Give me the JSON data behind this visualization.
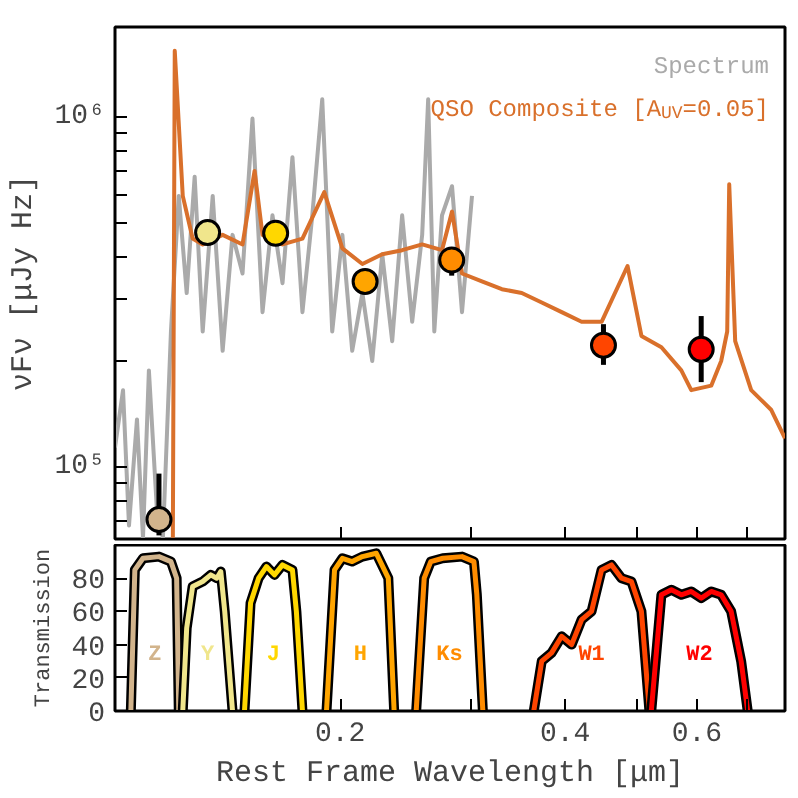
{
  "chart_data": [
    {
      "type": "line",
      "log": "xy",
      "ylabel": "νFν [μJy Hz]",
      "tick_labels": "y",
      "legend": "top right",
      "xlim": [
        0.1,
        0.787
      ],
      "xticks": [
        0.2,
        {
          "value": 0.3,
          "label": null
        },
        0.4,
        {
          "value": 0.5,
          "label": null
        },
        0.6,
        {
          "value": 0.7,
          "label": null
        }
      ],
      "ylim": [
        62500,
        1800000
      ],
      "yticks": [
        {
          "value": 70000,
          "label": null
        },
        {
          "value": 80000,
          "label": null
        },
        {
          "value": 90000,
          "label": null
        },
        {
          "value": 100000,
          "label": "10⁵"
        },
        {
          "value": 200000,
          "label": null
        },
        {
          "value": 300000,
          "label": null
        },
        {
          "value": 400000,
          "label": null
        },
        {
          "value": 500000,
          "label": null
        },
        {
          "value": 600000,
          "label": null
        },
        {
          "value": 700000,
          "label": null
        },
        {
          "value": 800000,
          "label": null
        },
        {
          "value": 900000,
          "label": null
        },
        {
          "value": 1000000,
          "label": "10⁶"
        }
      ],
      "series": [
        {
          "name": "Spectrum",
          "type": "line",
          "color": "#aaaaaa",
          "x": [
            0.1,
            0.1025,
            0.1044,
            0.107,
            0.109,
            0.111,
            0.1137,
            0.1159,
            0.1188,
            0.1217,
            0.1247,
            0.1278,
            0.131,
            0.1351,
            0.1393,
            0.1436,
            0.1481,
            0.1527,
            0.1575,
            0.1624,
            0.1675,
            0.1727,
            0.1781,
            0.1836,
            0.1893,
            0.1952,
            0.2014,
            0.2076,
            0.2142,
            0.2208,
            0.2277,
            0.2348,
            0.2421,
            0.2497,
            0.2575,
            0.2623,
            0.2673,
            0.2737,
            0.2823,
            0.2911,
            0.3002
          ],
          "values": [
            114000,
            166000,
            68300,
            137000,
            63000,
            189000,
            77500,
            63000,
            244000,
            594000,
            314000,
            674000,
            244000,
            594000,
            215000,
            460000,
            357000,
            987000,
            277000,
            523000,
            335000,
            766000,
            277000,
            523000,
            1120000,
            244000,
            460000,
            215000,
            314000,
            201000,
            405000,
            229000,
            523000,
            260000,
            460000,
            1120000,
            244000,
            523000,
            633000,
            277000,
            594000
          ]
        },
        {
          "name": "QSO Composite [A$_{UV}$=0.05]",
          "type": "line",
          "color": "#d9702b",
          "x": [
            0.1195,
            0.1202,
            0.1232,
            0.127,
            0.131,
            0.1393,
            0.1481,
            0.1537,
            0.1575,
            0.1675,
            0.1781,
            0.1905,
            0.2014,
            0.2142,
            0.2277,
            0.2421,
            0.2575,
            0.2737,
            0.2823,
            0.2911,
            0.3095,
            0.3291,
            0.3499,
            0.3721,
            0.3957,
            0.4207,
            0.4474,
            0.4846,
            0.5058,
            0.5379,
            0.5719,
            0.5897,
            0.6271,
            0.6466,
            0.6587,
            0.6628,
            0.6751,
            0.7092,
            0.754,
            0.787
          ],
          "values": [
            63000,
            1540000,
            594000,
            449000,
            432000,
            460000,
            432000,
            700000,
            460000,
            432000,
            449000,
            609000,
            421000,
            380000,
            405000,
            416000,
            432000,
            416000,
            536000,
            357000,
            339000,
            322000,
            314000,
            295000,
            277000,
            260000,
            260000,
            375000,
            237000,
            220000,
            189000,
            166000,
            171000,
            201000,
            244000,
            641000,
            229000,
            166000,
            146000,
            121000
          ]
        },
        {
          "type": "scatter",
          "marker": "circle",
          "x": [
            0.1145,
            0.133,
            0.164,
            0.216,
            0.282,
            0.45,
            0.608
          ],
          "values": [
            71000,
            467000,
            465000,
            339000,
            390000,
            223000,
            217000
          ],
          "colors": [
            "#d2b48c",
            "#f0e68c",
            "#ffd700",
            "#ffa500",
            "#ff8c00",
            "#ff4500",
            "#ff0000"
          ],
          "errors": [
            [
              64000,
              96000
            ],
            null,
            null,
            [
              314000,
              357000
            ],
            [
              352000,
              416000
            ],
            [
              196000,
              256000
            ],
            [
              175000,
              270000
            ]
          ]
        }
      ]
    },
    {
      "type": "line",
      "log": "x",
      "xlabel": "Rest Frame Wavelength [μm]",
      "ylabel": "Transmission",
      "xlim": [
        0.1,
        0.787
      ],
      "xticks": [
        0.2,
        {
          "value": 0.3,
          "label": null
        },
        0.4,
        {
          "value": 0.5,
          "label": null
        },
        0.6,
        {
          "value": 0.7,
          "label": null
        }
      ],
      "ylim": [
        0,
        100
      ],
      "yticks": [
        0,
        20,
        40,
        60,
        80
      ],
      "series": [
        {
          "name": "Z",
          "color": "#d2b48c",
          "x": [
            0.105,
            0.1063,
            0.109,
            0.1145,
            0.1188,
            0.1209,
            0.1217
          ],
          "values": [
            0,
            85,
            92,
            93,
            90,
            80,
            0
          ]
        },
        {
          "name": "Y",
          "color": "#f0e68c",
          "x": [
            0.1232,
            0.1247,
            0.127,
            0.131,
            0.1343,
            0.1368,
            0.1385,
            0.1402,
            0.1436
          ],
          "values": [
            0,
            50,
            75,
            78,
            82,
            80,
            84,
            60,
            0
          ]
        },
        {
          "name": "J",
          "color": "#ffd700",
          "x": [
            0.149,
            0.1518,
            0.1556,
            0.1594,
            0.1634,
            0.1675,
            0.1727,
            0.1748,
            0.1781
          ],
          "values": [
            0,
            65,
            80,
            87,
            82,
            88,
            85,
            60,
            0
          ]
        },
        {
          "name": "H",
          "color": "#ffa500",
          "x": [
            0.1918,
            0.1966,
            0.2014,
            0.2076,
            0.2142,
            0.2236,
            0.232,
            0.2362
          ],
          "values": [
            0,
            85,
            92,
            90,
            93,
            95,
            80,
            0
          ]
        },
        {
          "name": "Ks",
          "color": "#ff8c00",
          "x": [
            0.2528,
            0.2591,
            0.2644,
            0.2743,
            0.2911,
            0.302,
            0.3047,
            0.3104
          ],
          "values": [
            0,
            80,
            90,
            92,
            93,
            90,
            70,
            0
          ]
        },
        {
          "name": "W1",
          "color": "#ff4500",
          "x": [
            0.3631,
            0.3721,
            0.3836,
            0.3957,
            0.408,
            0.4207,
            0.4338,
            0.4474,
            0.4613,
            0.4757,
            0.4905,
            0.5058,
            0.5184
          ],
          "values": [
            0,
            30,
            35,
            45,
            40,
            55,
            60,
            85,
            88,
            80,
            78,
            60,
            0
          ]
        },
        {
          "name": "W2",
          "color": "#ff0000",
          "x": [
            0.5214,
            0.5379,
            0.5547,
            0.5719,
            0.5897,
            0.6081,
            0.6271,
            0.6466,
            0.6668,
            0.6876,
            0.7016
          ],
          "values": [
            0,
            70,
            73,
            70,
            72,
            68,
            72,
            70,
            60,
            30,
            0
          ]
        }
      ]
    }
  ]
}
